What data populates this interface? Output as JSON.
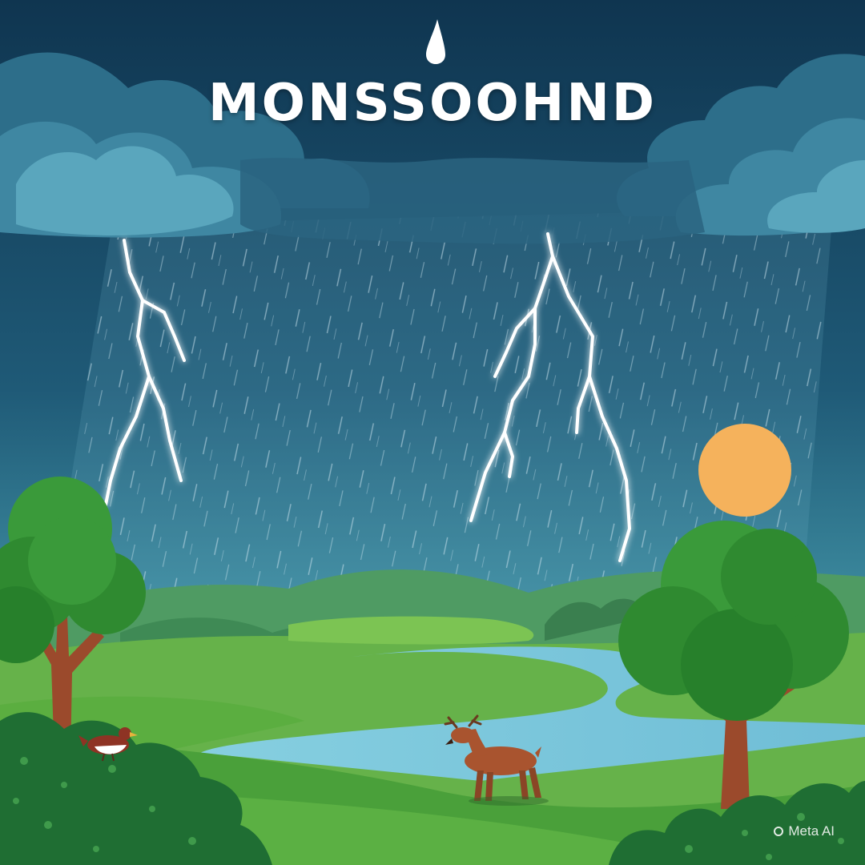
{
  "poster": {
    "title": "MONSSOOHND",
    "watermark": "Meta AI"
  },
  "scene": {
    "elements": [
      "storm-clouds",
      "rain",
      "lightning-bolts",
      "sun",
      "hills",
      "river",
      "trees",
      "deer",
      "bird",
      "bushes"
    ]
  },
  "colors": {
    "sky_top": "#0f3550",
    "sky_bottom": "#3f8fa2",
    "sun": "#f5b25c",
    "grass": "#56ad42",
    "river": "#7cc7de"
  }
}
